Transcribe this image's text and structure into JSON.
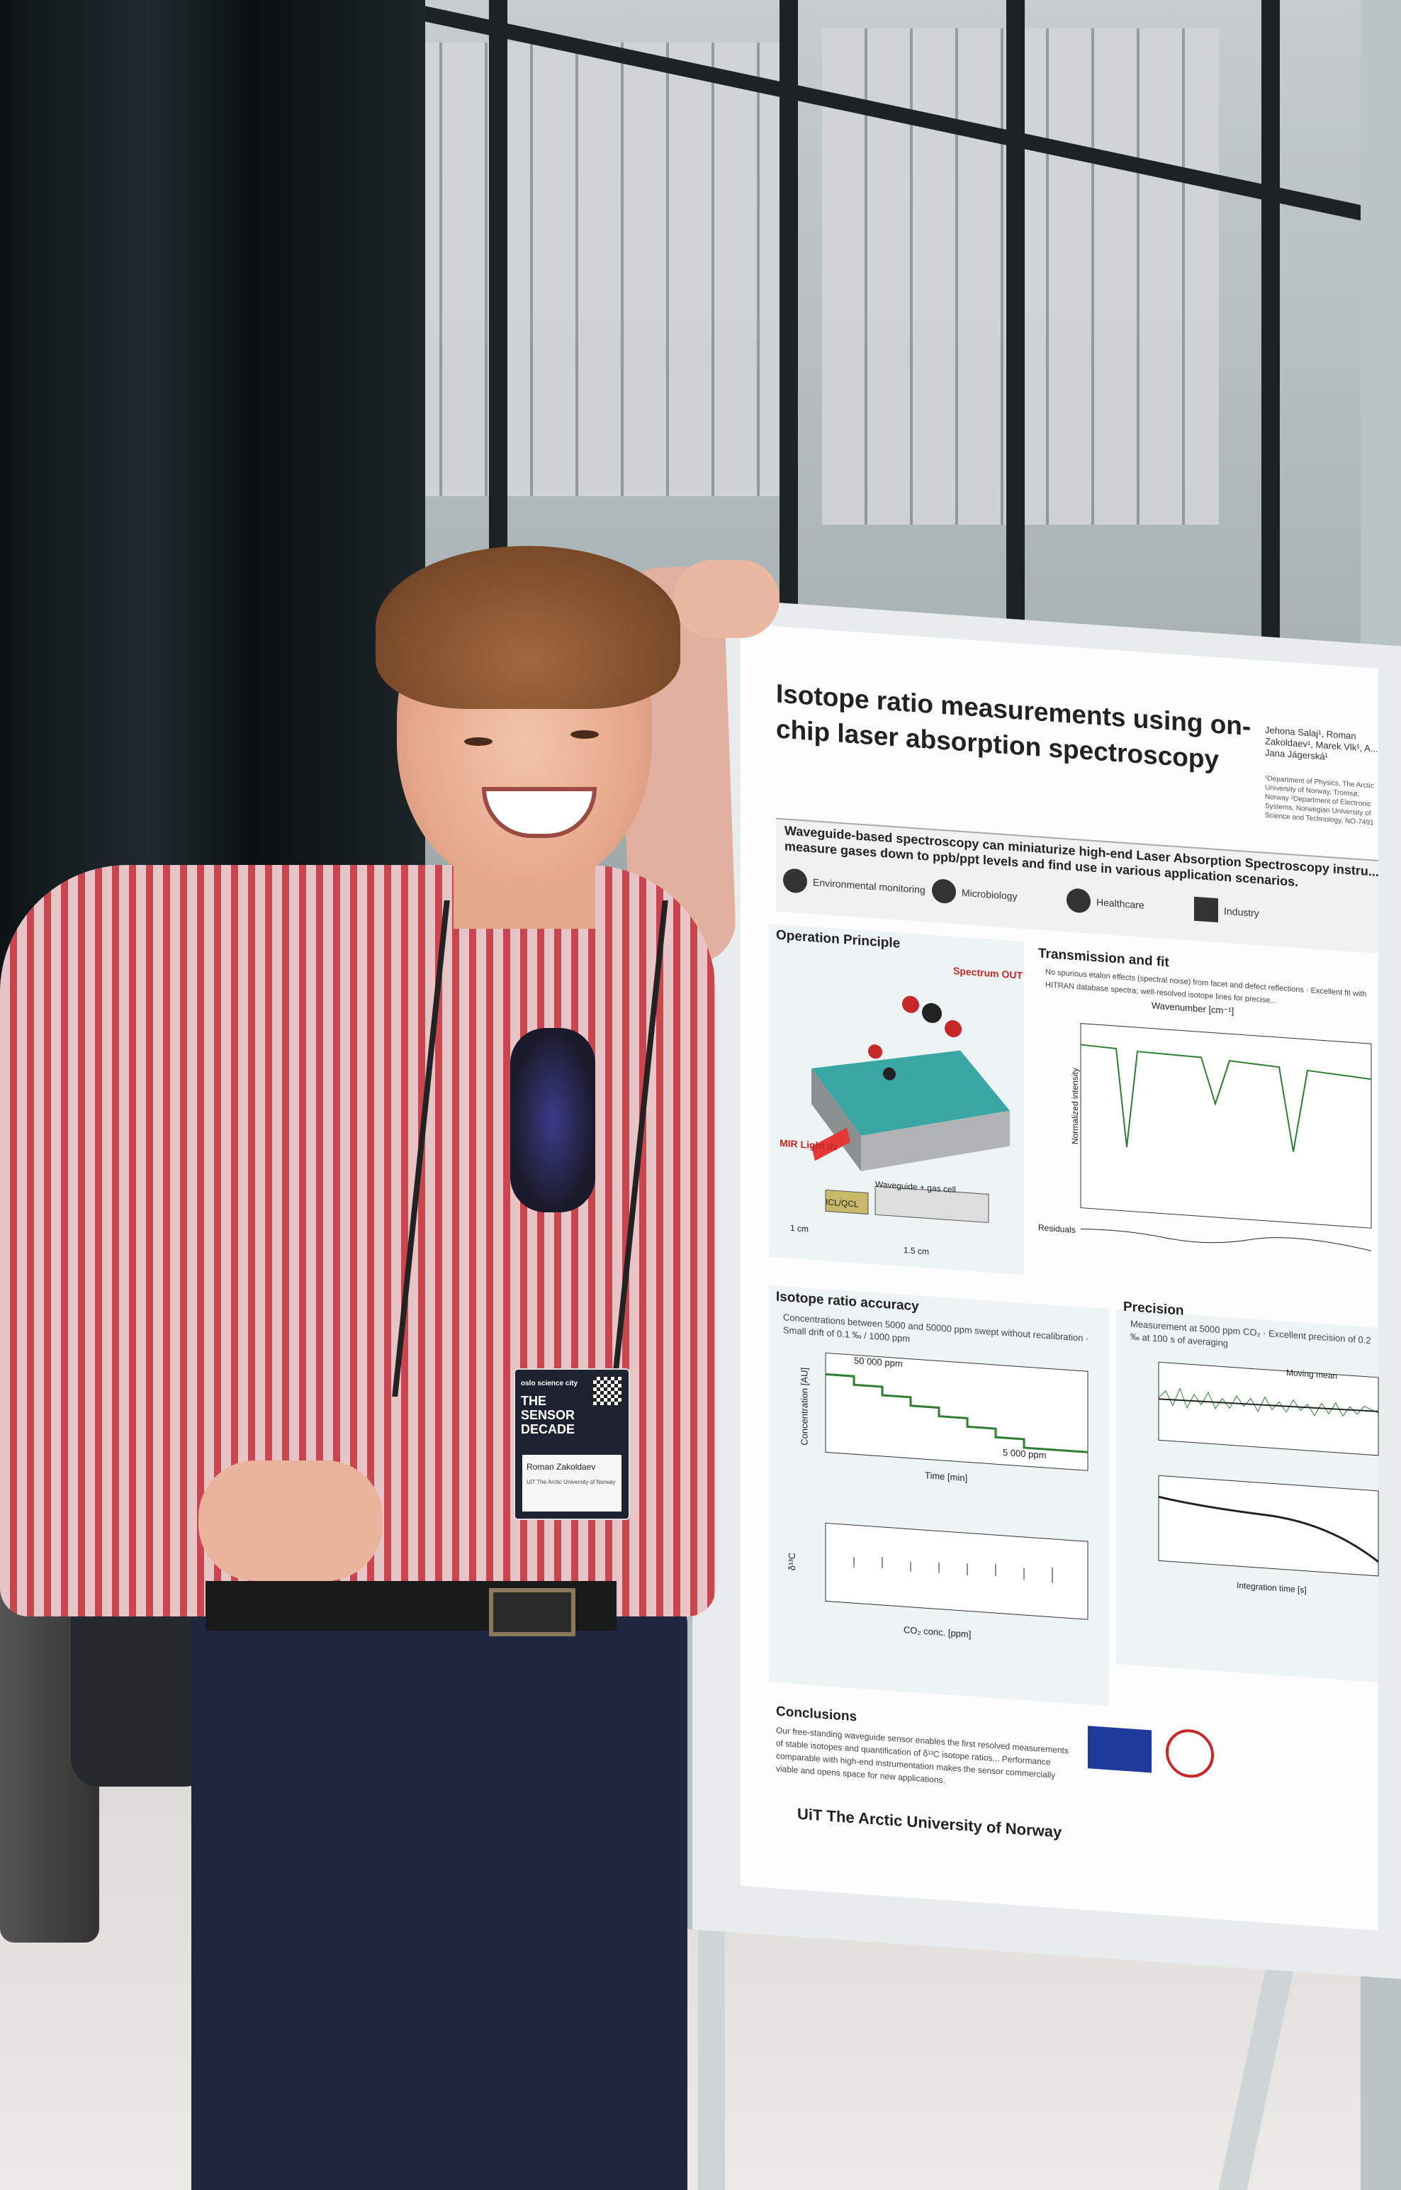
{
  "scene": {
    "description_colors": {
      "shirt_stripe": "#c9464e",
      "pants": "#1f2740",
      "poster_bg": "#fdfdfd",
      "curtain": "#0e1416"
    }
  },
  "poster": {
    "title": "Isotope ratio measurements using on-chip laser absorption spectroscopy",
    "authors": "Jehona Salaj¹, Roman Zakoldaev¹, Marek Vlk¹, A... Jana Jágerská¹",
    "affiliations": "¹Department of Physics, The Arctic University of Norway, Tromsø, Norway ²Department of Electronic Systems, Norwegian University of Science and Technology, NO-7491",
    "headline": "Waveguide-based spectroscopy can miniaturize high-end Laser Absorption Spectroscopy instru... measure gases down to ppb/ppt levels and find use in various application scenarios.",
    "applications": [
      "Environmental monitoring",
      "Microbiology",
      "Healthcare",
      "Industry"
    ],
    "sections": {
      "operation_principle": "Operation Principle",
      "spectrum_out": "Spectrum OUT",
      "mir_light_in": "MIR Light IN",
      "waveguide_gas_cell": "Waveguide + gas cell",
      "icl_qcl": "ICL/QCL",
      "scale_1cm": "1 cm",
      "scale_15cm": "1.5 cm",
      "transmission_fit": "Transmission and fit",
      "transmission_bullets": "No spurious etalon effects (spectral noise) from facet and defect reflections · Excellent fit with HITRAN database spectra; well-resolved isotope lines for precise...",
      "wavenumber_label": "Wavenumber [cm⁻¹]",
      "normalized_intensity": "Normalized intensity",
      "residuals": "Residuals",
      "isotope_accuracy": "Isotope ratio accuracy",
      "accuracy_bullets": "Concentrations between 5000 and 50000 ppm swept without recalibration · Small drift of 0.1 ‰ / 1000 ppm",
      "label_50000": "50 000 ppm",
      "label_5000": "5 000 ppm",
      "concentration_axis": "Concentration [AU]",
      "time_axis": "Time [min]",
      "co2_conc_axis": "CO₂ conc. [ppm]",
      "delta_axis": "δ¹³C",
      "precision": "Precision",
      "precision_bullets": "Measurement at 5000 ppm CO₂ · Excellent precision of 0.2 ‰ at 100 s of averaging",
      "moving_mean": "Moving mean",
      "integration_time": "Integration time [s]",
      "conclusions": "Conclusions",
      "conclusions_text": "Our free-standing waveguide sensor enables the first resolved measurements of stable isotopes and quantification of δ¹³C isotope ratios... Performance comparable with high-end instrumentation makes the sensor commercially viable and opens space for new applications.",
      "university": "UiT The Arctic University of Norway"
    }
  },
  "badge": {
    "event_line1": "oslo science city",
    "event_line2": "THE SENSOR DECADE",
    "name": "Roman Zakoldaev",
    "org": "UiT The Arctic University of Norway"
  }
}
